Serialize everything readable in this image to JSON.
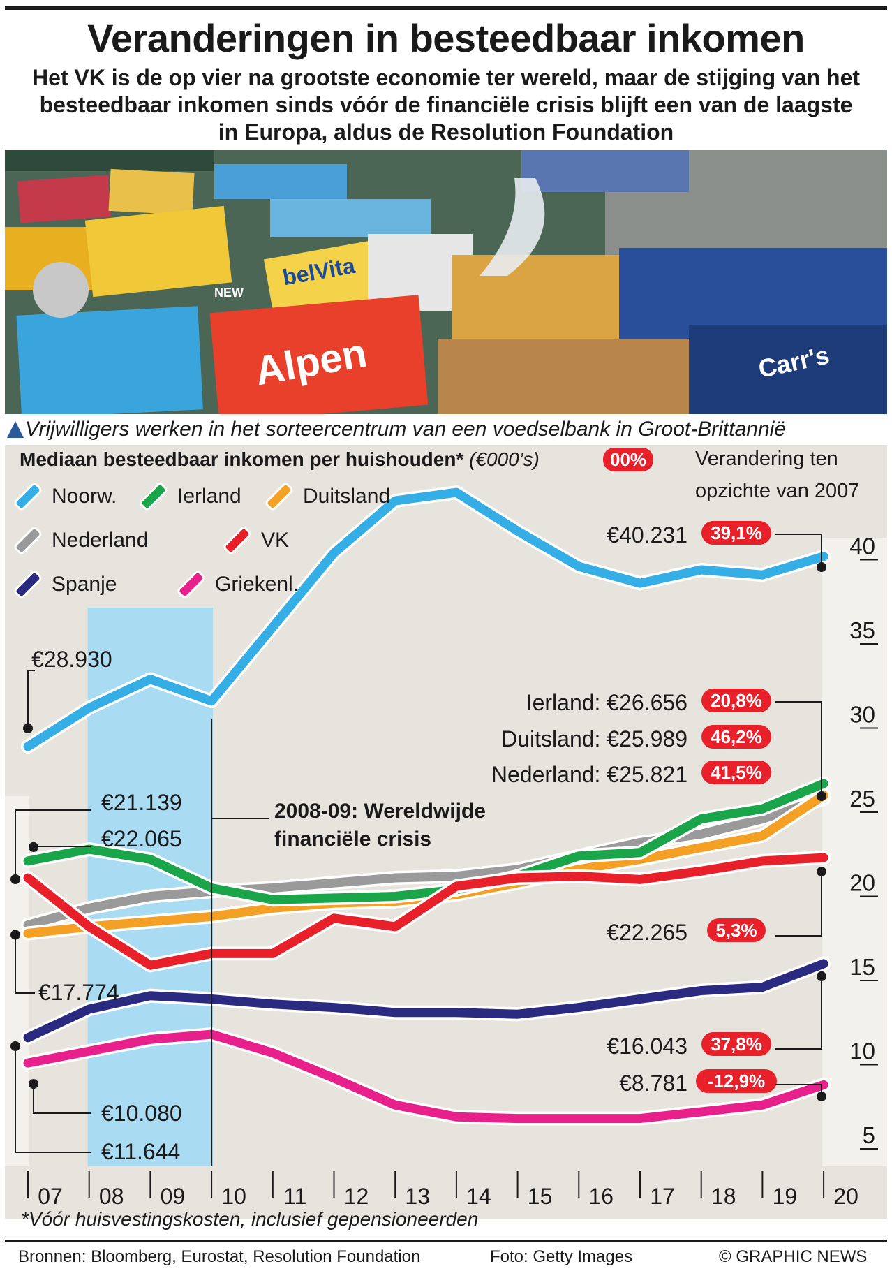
{
  "header": {
    "title": "Veranderingen in besteedbaar inkomen",
    "subtitle_lines": [
      "Het VK is de op vier na grootste economie ter wereld, maar de stijging van het",
      "besteedbaar inkomen sinds vóór de financiële crisis blijft een van de laagste",
      "in Europa, aldus de Resolution Foundation"
    ]
  },
  "photo": {
    "caption": "Vrijwilligers werken in het sorteercentrum van een voedselbank in Groot-Brittannië",
    "package_texts": [
      "Alpen",
      "belVita",
      "Carr's",
      "NEW"
    ]
  },
  "chart_title": {
    "main": "Mediaan besteedbaar inkomen per huishouden*",
    "unit": "(€000’s)",
    "legend_pill": "00%",
    "change_note_line1": "Verandering ten",
    "change_note_line2": "opzichte van 2007"
  },
  "crisis_label": {
    "line1": "2008-09: Wereldwijde",
    "line2": "financiële crisis"
  },
  "colors": {
    "noorw": "#35aee6",
    "ierland": "#1aa54a",
    "duitsland": "#f4a024",
    "nederland": "#9a9a9a",
    "vk": "#e8202a",
    "spanje": "#2a2a80",
    "griekenl": "#e8208c",
    "crisis_band": "#a9dbf2",
    "chart_bg": "#e6e4dc"
  },
  "chart_data": {
    "type": "line",
    "title": "Mediaan besteedbaar inkomen per huishouden*",
    "ylabel": "€000’s",
    "ylim": [
      4,
      44
    ],
    "yticks": [
      5,
      10,
      15,
      20,
      25,
      30,
      35,
      40
    ],
    "categories": [
      "07",
      "08",
      "09",
      "10",
      "11",
      "12",
      "13",
      "14",
      "15",
      "16",
      "17",
      "18",
      "19",
      "20"
    ],
    "series": [
      {
        "key": "noorw",
        "name": "Noorw.",
        "values": [
          28.9,
          31.2,
          32.9,
          31.6,
          36.0,
          40.4,
          43.5,
          44.0,
          41.7,
          39.6,
          38.6,
          39.4,
          39.1,
          40.2
        ],
        "start_label": "€28.930",
        "end_label": "€40.231",
        "change": "39,1%"
      },
      {
        "key": "ierland",
        "name": "Ierland",
        "values": [
          22.1,
          22.8,
          22.2,
          20.5,
          19.8,
          19.9,
          20.0,
          20.4,
          21.2,
          22.4,
          22.6,
          24.6,
          25.2,
          26.7
        ],
        "start_label": "€22.065",
        "end_label": "Ierland: €26.656",
        "change": "20,8%"
      },
      {
        "key": "duitsland",
        "name": "Duitsland",
        "values": [
          17.8,
          18.2,
          18.5,
          18.8,
          19.3,
          19.6,
          19.7,
          20.1,
          20.8,
          21.6,
          22.2,
          22.9,
          23.6,
          26.0
        ],
        "start_label": "€17.774",
        "end_label": "Duitsland: €25.989",
        "change": "46,2%"
      },
      {
        "key": "nederland",
        "name": "Nederland",
        "values": [
          18.3,
          19.3,
          20.0,
          20.3,
          20.5,
          20.8,
          21.1,
          21.2,
          21.6,
          22.4,
          23.2,
          23.7,
          24.6,
          25.8
        ],
        "start_label": "",
        "end_label": "Nederland: €25.821",
        "change": "41,5%"
      },
      {
        "key": "vk",
        "name": "VK",
        "values": [
          21.1,
          18.2,
          15.9,
          16.6,
          16.6,
          18.7,
          18.2,
          20.6,
          21.1,
          21.2,
          21.0,
          21.5,
          22.1,
          22.3
        ],
        "start_label": "€21.139",
        "end_label": "€22.265",
        "change": "5,3%"
      },
      {
        "key": "spanje",
        "name": "Spanje",
        "values": [
          11.6,
          13.3,
          14.1,
          13.9,
          13.6,
          13.4,
          13.1,
          13.1,
          13.0,
          13.4,
          13.9,
          14.4,
          14.6,
          16.0
        ],
        "start_label": "€11.644",
        "end_label": "€16.043",
        "change": "37,8%"
      },
      {
        "key": "griekenl",
        "name": "Griekenl.",
        "values": [
          10.1,
          10.8,
          11.5,
          11.8,
          10.7,
          9.2,
          7.6,
          6.9,
          6.8,
          6.8,
          6.8,
          7.2,
          7.6,
          8.8
        ],
        "start_label": "€10.080",
        "end_label": "€8.781",
        "change": "-12,9%"
      }
    ],
    "highlight": {
      "from": "08",
      "to": "09",
      "label": "2008-09: Wereldwijde financiële crisis"
    }
  },
  "legend": [
    {
      "key": "noorw",
      "label": "Noorw."
    },
    {
      "key": "ierland",
      "label": "Ierland"
    },
    {
      "key": "duitsland",
      "label": "Duitsland"
    },
    {
      "key": "nederland",
      "label": "Nederland"
    },
    {
      "key": "vk",
      "label": "VK"
    },
    {
      "key": "spanje",
      "label": "Spanje"
    },
    {
      "key": "griekenl",
      "label": "Griekenl."
    }
  ],
  "footer": {
    "footnote": "*Vóór huisvestingskosten, inclusief gepensioneerden",
    "sources": "Bronnen: Bloomberg, Eurostat, Resolution Foundation",
    "photo_credit": "Foto: Getty Images",
    "copyright": "© GRAPHIC NEWS"
  }
}
